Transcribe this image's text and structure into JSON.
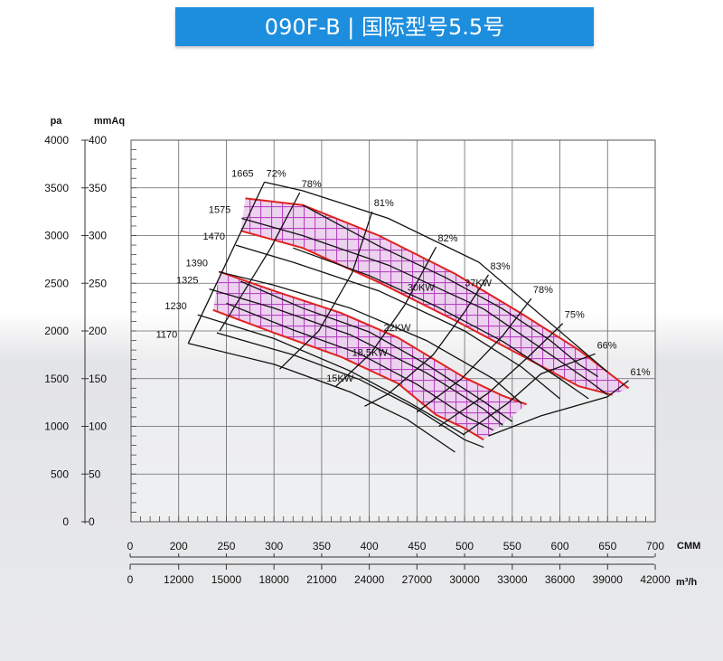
{
  "title": "090F-B | 国际型号5.5号",
  "colors": {
    "banner": "#1d8ede",
    "band": "#e0221e",
    "hatch": "#c04cc8",
    "line": "#111111"
  },
  "chart_data": {
    "type": "line",
    "title": "090F-B | 国际型号5.5号",
    "y_axes": [
      {
        "label": "pa",
        "ticks": [
          "0",
          "500",
          "1000",
          "1500",
          "2000",
          "2500",
          "3000",
          "3500",
          "4000"
        ],
        "range": [
          0,
          4000
        ]
      },
      {
        "label": "mmAq",
        "ticks": [
          "0",
          "50",
          "100",
          "150",
          "200",
          "250",
          "300",
          "350",
          "400"
        ],
        "range": [
          0,
          400
        ]
      }
    ],
    "x_axes": [
      {
        "label": "CMM",
        "ticks": [
          "0",
          "200",
          "250",
          "300",
          "350",
          "400",
          "450",
          "500",
          "550",
          "600",
          "650",
          "700"
        ],
        "range": [
          150,
          700
        ]
      },
      {
        "label": "m³/h",
        "ticks": [
          "0",
          "12000",
          "15000",
          "18000",
          "21000",
          "24000",
          "27000",
          "30000",
          "33000",
          "36000",
          "39000",
          "42000"
        ],
        "range": [
          9000,
          42000
        ]
      }
    ],
    "grid": true,
    "speed_curves": [
      {
        "rpm": "1665",
        "points": [
          [
            290,
            3560
          ],
          [
            330,
            3470
          ],
          [
            420,
            3180
          ],
          [
            515,
            2720
          ],
          [
            650,
            1570
          ]
        ]
      },
      {
        "rpm": "1575",
        "points": [
          [
            266,
            3180
          ],
          [
            330,
            3000
          ],
          [
            420,
            2690
          ],
          [
            520,
            2230
          ],
          [
            630,
            1480
          ],
          [
            650,
            1330
          ]
        ]
      },
      {
        "rpm": "1470",
        "points": [
          [
            260,
            2900
          ],
          [
            320,
            2720
          ],
          [
            410,
            2420
          ],
          [
            500,
            2000
          ],
          [
            560,
            1620
          ],
          [
            600,
            1290
          ]
        ]
      },
      {
        "rpm": "1390",
        "points": [
          [
            242,
            2620
          ],
          [
            300,
            2480
          ],
          [
            380,
            2240
          ],
          [
            460,
            1900
          ],
          [
            530,
            1500
          ],
          [
            560,
            1240
          ]
        ]
      },
      {
        "rpm": "1325",
        "points": [
          [
            232,
            2440
          ],
          [
            300,
            2240
          ],
          [
            380,
            1960
          ],
          [
            460,
            1560
          ],
          [
            520,
            1180
          ],
          [
            540,
            1010
          ]
        ]
      },
      {
        "rpm": "1230",
        "points": [
          [
            220,
            2170
          ],
          [
            300,
            1920
          ],
          [
            380,
            1580
          ],
          [
            440,
            1260
          ],
          [
            500,
            910
          ]
        ]
      },
      {
        "rpm": "1170",
        "points": [
          [
            210,
            1870
          ],
          [
            300,
            1650
          ],
          [
            380,
            1360
          ],
          [
            440,
            1070
          ],
          [
            490,
            730
          ]
        ]
      }
    ],
    "efficiency_lines": [
      {
        "label": "72%",
        "points": [
          [
            290,
            3560
          ],
          [
            210,
            1870
          ]
        ]
      },
      {
        "label": "78%",
        "points": [
          [
            327,
            3450
          ],
          [
            296,
            2860
          ],
          [
            243,
            2000
          ]
        ]
      },
      {
        "label": "81%",
        "points": [
          [
            403,
            3250
          ],
          [
            382,
            2610
          ],
          [
            347,
            2000
          ],
          [
            306,
            1600
          ]
        ]
      },
      {
        "label": "82%",
        "points": [
          [
            470,
            2880
          ],
          [
            437,
            2270
          ],
          [
            402,
            1770
          ],
          [
            365,
            1420
          ]
        ]
      },
      {
        "label": "83%",
        "points": [
          [
            525,
            2590
          ],
          [
            500,
            2200
          ],
          [
            467,
            1750
          ],
          [
            420,
            1340
          ],
          [
            395,
            1210
          ]
        ]
      },
      {
        "label": "78%",
        "points": [
          [
            570,
            2340
          ],
          [
            540,
            1950
          ],
          [
            497,
            1500
          ],
          [
            450,
            1150
          ]
        ]
      },
      {
        "label": "75%",
        "points": [
          [
            603,
            2080
          ],
          [
            567,
            1730
          ],
          [
            525,
            1350
          ],
          [
            473,
            1000
          ]
        ]
      },
      {
        "label": "66%",
        "points": [
          [
            637,
            1760
          ],
          [
            580,
            1550
          ],
          [
            545,
            1240
          ],
          [
            498,
            910
          ]
        ]
      },
      {
        "label": "61%",
        "points": [
          [
            672,
            1480
          ],
          [
            650,
            1310
          ],
          [
            580,
            1110
          ],
          [
            525,
            900
          ]
        ]
      }
    ],
    "power_lines": [
      {
        "label": "37KW",
        "points": [
          [
            330,
            3320
          ],
          [
            410,
            2890
          ],
          [
            480,
            2560
          ],
          [
            540,
            2230
          ],
          [
            590,
            1900
          ],
          [
            620,
            1650
          ],
          [
            640,
            1520
          ]
        ]
      },
      {
        "label": "30KW",
        "points": [
          [
            320,
            2870
          ],
          [
            400,
            2580
          ],
          [
            470,
            2260
          ],
          [
            540,
            1890
          ],
          [
            600,
            1500
          ],
          [
            630,
            1290
          ]
        ]
      },
      {
        "label": "22KW",
        "points": [
          [
            265,
            2520
          ],
          [
            330,
            2240
          ],
          [
            400,
            1990
          ],
          [
            460,
            1650
          ],
          [
            520,
            1260
          ],
          [
            550,
            1050
          ]
        ]
      },
      {
        "label": "18.5KW",
        "points": [
          [
            250,
            2290
          ],
          [
            320,
            2010
          ],
          [
            390,
            1760
          ],
          [
            450,
            1440
          ],
          [
            500,
            1110
          ],
          [
            530,
            960
          ]
        ]
      },
      {
        "label": "15KW",
        "points": [
          [
            240,
            1980
          ],
          [
            320,
            1750
          ],
          [
            390,
            1490
          ],
          [
            450,
            1180
          ],
          [
            500,
            860
          ],
          [
            520,
            780
          ]
        ]
      }
    ],
    "hatched_bands": [
      {
        "upper": [
          [
            270,
            3390
          ],
          [
            330,
            3320
          ],
          [
            410,
            3000
          ],
          [
            490,
            2600
          ],
          [
            560,
            2180
          ],
          [
            620,
            1800
          ],
          [
            672,
            1400
          ]
        ],
        "lower": [
          [
            265,
            3050
          ],
          [
            330,
            2870
          ],
          [
            410,
            2510
          ],
          [
            490,
            2110
          ],
          [
            560,
            1740
          ],
          [
            620,
            1420
          ],
          [
            655,
            1330
          ]
        ]
      },
      {
        "upper": [
          [
            243,
            2620
          ],
          [
            300,
            2420
          ],
          [
            370,
            2190
          ],
          [
            430,
            1930
          ],
          [
            500,
            1510
          ],
          [
            540,
            1320
          ],
          [
            565,
            1230
          ]
        ],
        "lower": [
          [
            236,
            2220
          ],
          [
            300,
            1980
          ],
          [
            370,
            1730
          ],
          [
            430,
            1450
          ],
          [
            470,
            1120
          ],
          [
            500,
            980
          ],
          [
            520,
            860
          ]
        ]
      }
    ]
  }
}
